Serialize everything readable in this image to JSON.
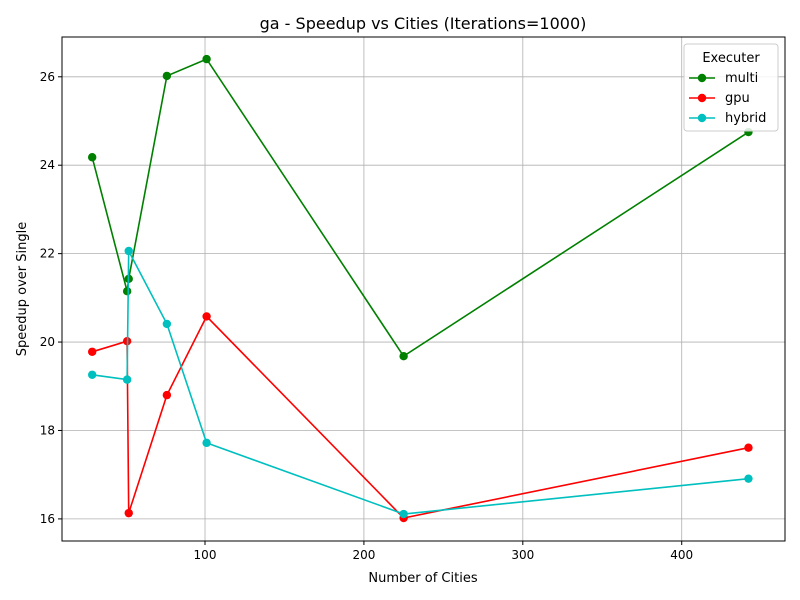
{
  "chart_data": {
    "type": "line",
    "title": "ga - Speedup vs Cities (Iterations=1000)",
    "xlabel": "Number of Cities",
    "ylabel": "Speedup over Single",
    "xlim": [
      10,
      465
    ],
    "ylim": [
      15.5,
      26.9
    ],
    "xticks": [
      100,
      200,
      300,
      400
    ],
    "yticks": [
      16,
      18,
      20,
      22,
      24,
      26
    ],
    "grid": true,
    "legend": {
      "title": "Executer",
      "placement": "top-right"
    },
    "series": [
      {
        "name": "multi",
        "color": "#008000",
        "x": [
          29,
          51,
          52,
          76,
          101,
          225,
          442
        ],
        "y": [
          24.18,
          21.15,
          21.43,
          26.02,
          26.4,
          19.68,
          24.75
        ]
      },
      {
        "name": "gpu",
        "color": "#ff0000",
        "x": [
          29,
          51,
          52,
          76,
          101,
          225,
          442
        ],
        "y": [
          19.78,
          20.02,
          16.13,
          18.8,
          20.58,
          16.02,
          17.61
        ]
      },
      {
        "name": "hybrid",
        "color": "#00bfbf",
        "x": [
          29,
          51,
          52,
          76,
          101,
          225,
          442
        ],
        "y": [
          19.26,
          19.15,
          22.06,
          20.41,
          17.72,
          16.11,
          16.91
        ]
      }
    ]
  }
}
